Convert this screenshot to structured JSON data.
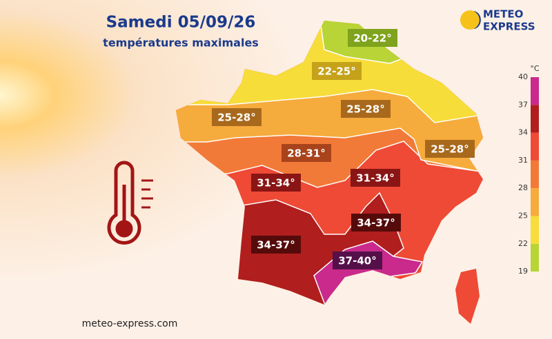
{
  "header": {
    "title": "Samedi 05/09/26",
    "subtitle": "températures maximales"
  },
  "logo": {
    "line1": "METEO",
    "line2": "EXPRESS"
  },
  "zones": [
    {
      "label": "20-22°"
    },
    {
      "label": "22-25°"
    },
    {
      "label": "25-28°"
    },
    {
      "label": "25-28°"
    },
    {
      "label": "25-28°"
    },
    {
      "label": "28-31°"
    },
    {
      "label": "31-34°"
    },
    {
      "label": "31-34°"
    },
    {
      "label": "34-37°"
    },
    {
      "label": "34-37°"
    },
    {
      "label": "37-40°"
    }
  ],
  "legend": {
    "unit": "°C",
    "ticks": [
      40,
      37,
      34,
      31,
      28,
      25,
      22,
      19
    ],
    "colors": [
      "#c92a8c",
      "#b01e1e",
      "#ee4a36",
      "#f27a38",
      "#f6ab3d",
      "#f6dd3a",
      "#b8d436"
    ]
  },
  "footer": "meteo-express.com"
}
